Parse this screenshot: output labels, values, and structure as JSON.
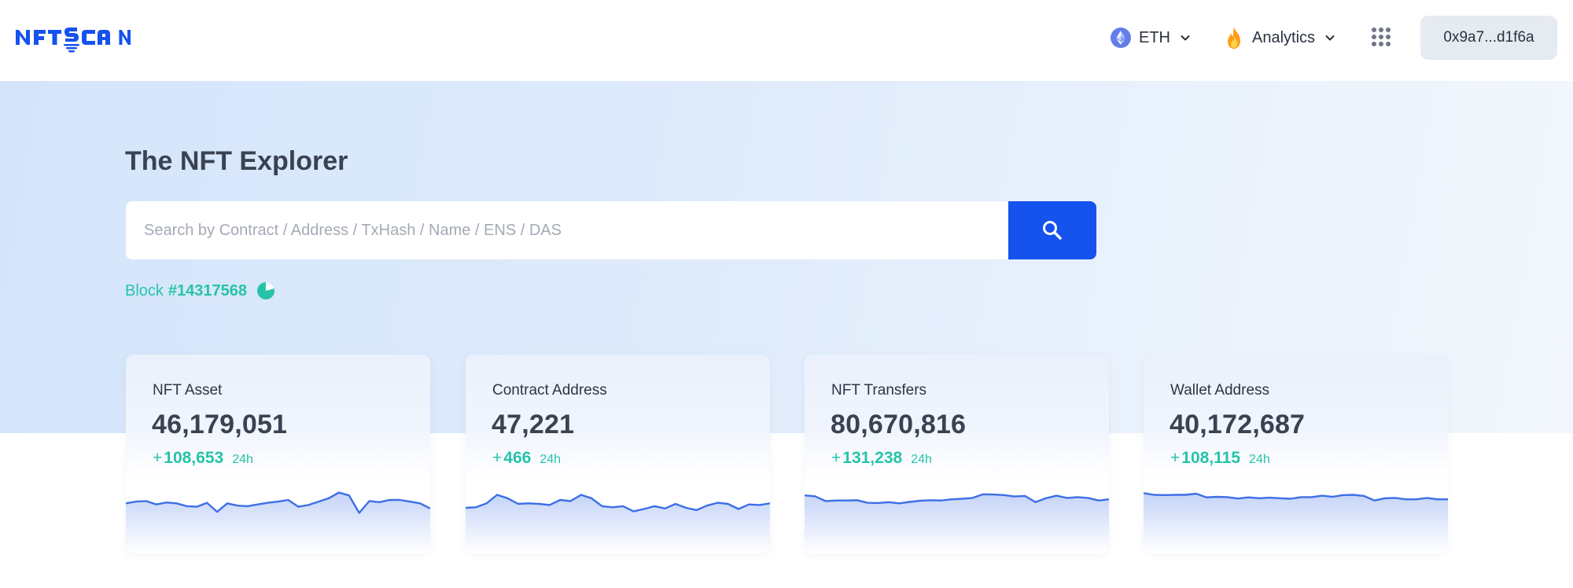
{
  "header": {
    "logo_text": "NFTSCAN",
    "chain": {
      "label": "ETH",
      "icon": "ethereum-icon"
    },
    "analytics": {
      "label": "Analytics",
      "icon": "fire-icon"
    },
    "apps_icon": "grid-dots-icon",
    "wallet": "0x9a7...d1f6a"
  },
  "hero": {
    "title": "The NFT Explorer",
    "search": {
      "placeholder": "Search by Contract / Address / TxHash / Name / ENS / DAS",
      "value": ""
    },
    "block": {
      "label": "Block",
      "number": "#14317568"
    }
  },
  "colors": {
    "brand": "#1652ee",
    "accent_green": "#27c3a9",
    "sparkline": "#3d6fe6"
  },
  "stats": [
    {
      "label": "NFT Asset",
      "value": "46,179,051",
      "delta": "108,653",
      "period": "24h",
      "trend": [
        0.52,
        0.58,
        0.6,
        0.48,
        0.55,
        0.52,
        0.42,
        0.4,
        0.54,
        0.22,
        0.52,
        0.44,
        0.42,
        0.48,
        0.54,
        0.58,
        0.64,
        0.4,
        0.46,
        0.58,
        0.7,
        0.9,
        0.8,
        0.18,
        0.6,
        0.56,
        0.64,
        0.64,
        0.58,
        0.52,
        0.34
      ]
    },
    {
      "label": "Contract Address",
      "value": "47,221",
      "delta": "466",
      "period": "24h",
      "trend": [
        0.36,
        0.38,
        0.52,
        0.82,
        0.7,
        0.5,
        0.52,
        0.5,
        0.46,
        0.64,
        0.6,
        0.82,
        0.7,
        0.42,
        0.38,
        0.42,
        0.24,
        0.32,
        0.42,
        0.34,
        0.5,
        0.36,
        0.28,
        0.44,
        0.54,
        0.5,
        0.32,
        0.48,
        0.46,
        0.52
      ]
    },
    {
      "label": "NFT Transfers",
      "value": "80,670,816",
      "delta": "131,238",
      "period": "24h",
      "trend": [
        0.8,
        0.77,
        0.6,
        0.62,
        0.62,
        0.63,
        0.54,
        0.53,
        0.56,
        0.52,
        0.57,
        0.61,
        0.63,
        0.62,
        0.66,
        0.68,
        0.71,
        0.84,
        0.83,
        0.81,
        0.76,
        0.78,
        0.56,
        0.7,
        0.79,
        0.71,
        0.74,
        0.71,
        0.62,
        0.66
      ]
    },
    {
      "label": "Wallet Address",
      "value": "40,172,687",
      "delta": "108,115",
      "period": "24h",
      "trend": [
        0.88,
        0.82,
        0.81,
        0.82,
        0.82,
        0.86,
        0.73,
        0.75,
        0.74,
        0.69,
        0.73,
        0.7,
        0.72,
        0.7,
        0.68,
        0.74,
        0.74,
        0.79,
        0.75,
        0.81,
        0.82,
        0.78,
        0.62,
        0.7,
        0.71,
        0.66,
        0.66,
        0.71,
        0.66,
        0.66
      ]
    }
  ]
}
